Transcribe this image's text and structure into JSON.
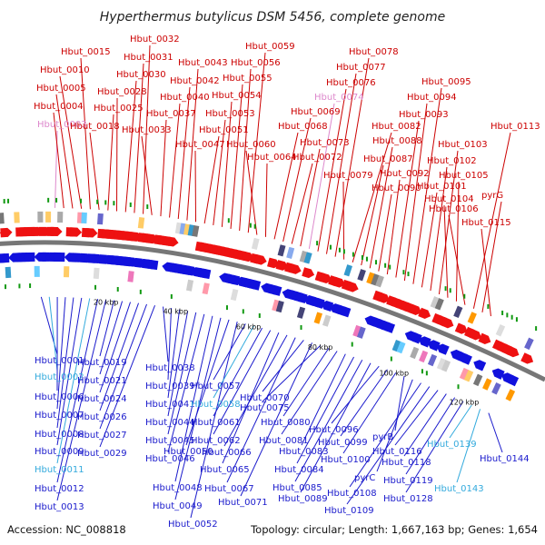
{
  "title": "Hyperthermus butylicus DSM 5456, complete genome",
  "footer": {
    "accession": "Accession: NC_008818",
    "summary": "Topology: circular; Length: 1,667,163 bp; Genes: 1,654"
  },
  "colors": {
    "forward_label": "#cc0000",
    "forward_label_dim": "#dd88cc",
    "reverse_label": "#1a1acc",
    "reverse_label_dim": "#33aadd",
    "backbone": "#777777",
    "forward_arrow": "#ee1111",
    "reverse_arrow": "#1111dd",
    "gc_mark": "#119911"
  },
  "scale_ticks": [
    "20 kbp",
    "40 kbp",
    "60 kbp",
    "80 kbp",
    "100 kbp",
    "120 kbp"
  ],
  "forward_genes": [
    {
      "name": "Hbut_0003",
      "dim": true
    },
    {
      "name": "Hbut_0004"
    },
    {
      "name": "Hbut_0005"
    },
    {
      "name": "Hbut_0010"
    },
    {
      "name": "Hbut_0015"
    },
    {
      "name": "Hbut_0018"
    },
    {
      "name": "Hbut_0025"
    },
    {
      "name": "Hbut_0028"
    },
    {
      "name": "Hbut_0030"
    },
    {
      "name": "Hbut_0031"
    },
    {
      "name": "Hbut_0032"
    },
    {
      "name": "Hbut_0033"
    },
    {
      "name": "Hbut_0037"
    },
    {
      "name": "Hbut_0040"
    },
    {
      "name": "Hbut_0042"
    },
    {
      "name": "Hbut_0043"
    },
    {
      "name": "Hbut_0047"
    },
    {
      "name": "Hbut_0051"
    },
    {
      "name": "Hbut_0053"
    },
    {
      "name": "Hbut_0054"
    },
    {
      "name": "Hbut_0055"
    },
    {
      "name": "Hbut_0056"
    },
    {
      "name": "Hbut_0059"
    },
    {
      "name": "Hbut_0060"
    },
    {
      "name": "Hbut_0064"
    },
    {
      "name": "Hbut_0068"
    },
    {
      "name": "Hbut_0069"
    },
    {
      "name": "Hbut_0072"
    },
    {
      "name": "Hbut_0073"
    },
    {
      "name": "Hbut_0074",
      "dim": true
    },
    {
      "name": "Hbut_0076"
    },
    {
      "name": "Hbut_0077"
    },
    {
      "name": "Hbut_0078"
    },
    {
      "name": "Hbut_0079"
    },
    {
      "name": "Hbut_0082"
    },
    {
      "name": "Hbut_0087"
    },
    {
      "name": "Hbut_0088"
    },
    {
      "name": "Hbut_0090"
    },
    {
      "name": "Hbut_0092"
    },
    {
      "name": "Hbut_0093"
    },
    {
      "name": "Hbut_0094"
    },
    {
      "name": "Hbut_0095"
    },
    {
      "name": "Hbut_0101"
    },
    {
      "name": "Hbut_0102"
    },
    {
      "name": "Hbut_0103"
    },
    {
      "name": "Hbut_0104"
    },
    {
      "name": "Hbut_0105"
    },
    {
      "name": "Hbut_0106"
    },
    {
      "name": "Hbut_0113"
    },
    {
      "name": "pyrG"
    },
    {
      "name": "Hbut_0115"
    }
  ],
  "reverse_genes": [
    {
      "name": "Hbut_0001"
    },
    {
      "name": "Hbut_0002",
      "dim": true
    },
    {
      "name": "Hbut_0006"
    },
    {
      "name": "Hbut_0007"
    },
    {
      "name": "Hbut_0008"
    },
    {
      "name": "Hbut_0009"
    },
    {
      "name": "Hbut_0011",
      "dim": true
    },
    {
      "name": "Hbut_0012"
    },
    {
      "name": "Hbut_0013"
    },
    {
      "name": "Hbut_0019"
    },
    {
      "name": "Hbut_0021"
    },
    {
      "name": "Hbut_0024"
    },
    {
      "name": "Hbut_0026"
    },
    {
      "name": "Hbut_0027"
    },
    {
      "name": "Hbut_0029"
    },
    {
      "name": "Hbut_0038"
    },
    {
      "name": "Hbut_0039"
    },
    {
      "name": "Hbut_0041"
    },
    {
      "name": "Hbut_0044"
    },
    {
      "name": "Hbut_0045"
    },
    {
      "name": "Hbut_0046"
    },
    {
      "name": "Hbut_0048"
    },
    {
      "name": "Hbut_0049"
    },
    {
      "name": "Hbut_0050"
    },
    {
      "name": "Hbut_0052"
    },
    {
      "name": "Hbut_0057"
    },
    {
      "name": "Hbut_0058",
      "dim": true
    },
    {
      "name": "Hbut_0061"
    },
    {
      "name": "Hbut_0062"
    },
    {
      "name": "Hbut_0065"
    },
    {
      "name": "Hbut_0066"
    },
    {
      "name": "Hbut_0067"
    },
    {
      "name": "Hbut_0070"
    },
    {
      "name": "Hbut_0071"
    },
    {
      "name": "Hbut_0075"
    },
    {
      "name": "Hbut_0080"
    },
    {
      "name": "Hbut_0081"
    },
    {
      "name": "Hbut_0083"
    },
    {
      "name": "Hbut_0084"
    },
    {
      "name": "Hbut_0085"
    },
    {
      "name": "Hbut_0089"
    },
    {
      "name": "Hbut_0096"
    },
    {
      "name": "Hbut_0099"
    },
    {
      "name": "Hbut_0100"
    },
    {
      "name": "pyrB"
    },
    {
      "name": "pyrC"
    },
    {
      "name": "Hbut_0108"
    },
    {
      "name": "Hbut_0109"
    },
    {
      "name": "Hbut_0116"
    },
    {
      "name": "Hbut_0118"
    },
    {
      "name": "Hbut_0119"
    },
    {
      "name": "Hbut_0128"
    },
    {
      "name": "Hbut_0139",
      "dim": true
    },
    {
      "name": "Hbut_0143",
      "dim": true
    },
    {
      "name": "Hbut_0144"
    }
  ]
}
